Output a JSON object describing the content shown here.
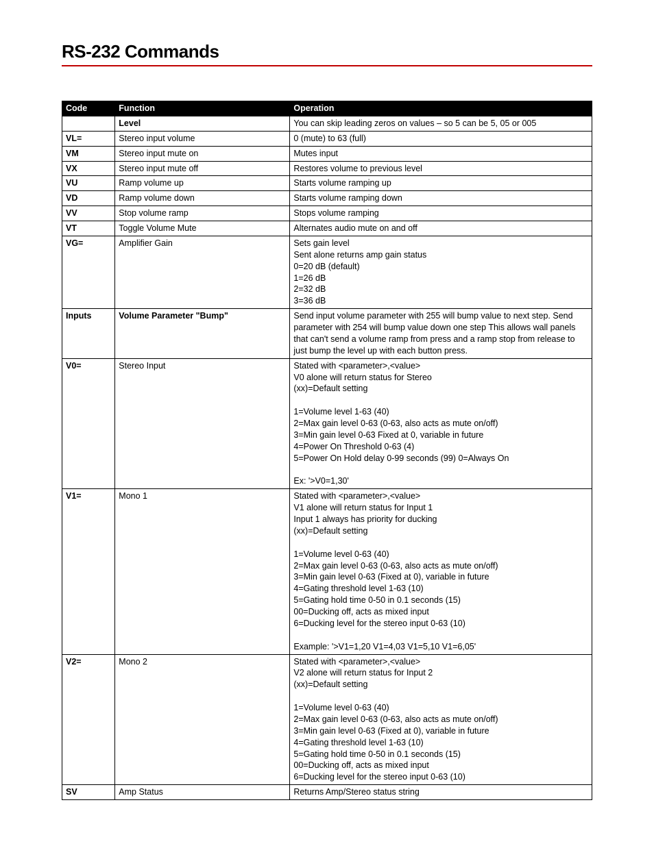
{
  "title": "RS-232 Commands",
  "accent_color": "#c00000",
  "columns": {
    "code": "Code",
    "func": "Function",
    "op": "Operation"
  },
  "rows": [
    {
      "code": "",
      "func": "Level",
      "func_bold": true,
      "op": "You can skip leading zeros on values – so 5 can be 5, 05 or  005"
    },
    {
      "code": "VL=",
      "func": "Stereo input volume",
      "op": "0 (mute) to 63 (full)"
    },
    {
      "code": "VM",
      "func": "Stereo input mute on",
      "op": "Mutes input"
    },
    {
      "code": "VX",
      "func": "Stereo input mute off",
      "op": "Restores volume to previous level"
    },
    {
      "code": "VU",
      "func": "Ramp volume up",
      "op": "Starts volume ramping up"
    },
    {
      "code": "VD",
      "func": "Ramp volume down",
      "op": "Starts volume ramping down"
    },
    {
      "code": "VV",
      "func": "Stop volume ramp",
      "op": "Stops volume ramping"
    },
    {
      "code": "VT",
      "func": "Toggle Volume Mute",
      "op": "Alternates audio mute on and off"
    },
    {
      "code": "VG=",
      "func": "Amplifier Gain",
      "op": "Sets gain level\nSent alone returns amp gain status\n0=20 dB (default)\n1=26 dB\n2=32 dB\n3=36 dB"
    },
    {
      "code": "Inputs",
      "func": "Volume Parameter \"Bump\"",
      "func_bold": true,
      "op": "Send input volume parameter with 255 will bump value to next step. Send parameter with 254 will bump value down one step This allows wall panels that can't send a volume ramp from press and a ramp stop from release to just bump the level up with each button press."
    },
    {
      "code": "V0=",
      "func": "Stereo Input",
      "op": "Stated with <parameter>,<value>\nV0 alone will return status for Stereo\n(xx)=Default setting\n\n1=Volume level 1-63 (40)\n2=Max gain level 0-63 (0-63, also acts as mute on/off)\n3=Min gain level 0-63 Fixed at 0, variable in future\n4=Power On Threshold 0-63 (4)\n5=Power On Hold delay 0-99 seconds (99) 0=Always On\n\nEx: '>V0=1,30'"
    },
    {
      "code": "V1=",
      "func": "Mono 1",
      "op": "Stated with <parameter>,<value>\nV1 alone will return status for Input 1\nInput 1 always has priority for ducking\n(xx)=Default setting\n\n1=Volume level 0-63 (40)\n2=Max gain level 0-63 (0-63, also acts as mute on/off)\n3=Min gain level 0-63 (Fixed at 0), variable in future\n4=Gating threshold level 1-63  (10)\n5=Gating hold time 0-50 in 0.1 seconds (15)\n    00=Ducking off, acts as mixed input\n6=Ducking level for the stereo input 0-63 (10)\n\nExample: '>V1=1,20 V1=4,03 V1=5,10 V1=6,05'"
    },
    {
      "code": "V2=",
      "func": "Mono 2",
      "op": "Stated with <parameter>,<value>\nV2 alone will return status for Input 2\n(xx)=Default setting\n\n1=Volume level 0-63 (40)\n2=Max gain level 0-63 (0-63, also acts as mute on/off)\n3=Min gain level 0-63 (Fixed at 0), variable in future\n4=Gating threshold level 1-63  (10)\n5=Gating hold time 0-50 in 0.1 seconds (15)\n    00=Ducking off, acts as mixed input\n6=Ducking level for the stereo input 0-63 (10)"
    },
    {
      "code": "SV",
      "func": "Amp Status",
      "op": "Returns Amp/Stereo status string"
    }
  ]
}
